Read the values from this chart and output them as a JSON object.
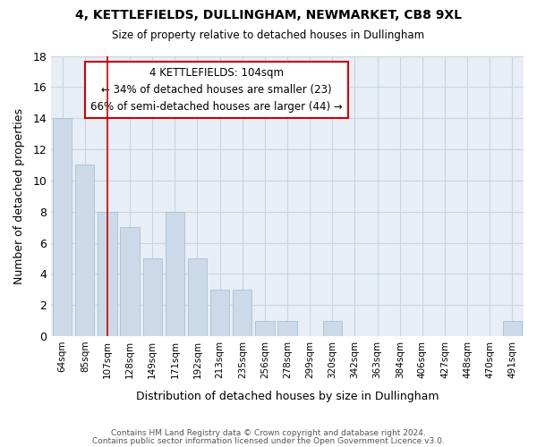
{
  "title": "4, KETTLEFIELDS, DULLINGHAM, NEWMARKET, CB8 9XL",
  "subtitle": "Size of property relative to detached houses in Dullingham",
  "xlabel": "Distribution of detached houses by size in Dullingham",
  "ylabel": "Number of detached properties",
  "bar_labels": [
    "64sqm",
    "85sqm",
    "107sqm",
    "128sqm",
    "149sqm",
    "171sqm",
    "192sqm",
    "213sqm",
    "235sqm",
    "256sqm",
    "278sqm",
    "299sqm",
    "320sqm",
    "342sqm",
    "363sqm",
    "384sqm",
    "406sqm",
    "427sqm",
    "448sqm",
    "470sqm",
    "491sqm"
  ],
  "bar_values": [
    14,
    11,
    8,
    7,
    5,
    8,
    5,
    3,
    3,
    1,
    1,
    0,
    1,
    0,
    0,
    0,
    0,
    0,
    0,
    0,
    1
  ],
  "bar_color": "#ccd9e8",
  "bar_edgecolor": "#a8c0d8",
  "ylim": [
    0,
    18
  ],
  "yticks": [
    0,
    2,
    4,
    6,
    8,
    10,
    12,
    14,
    16,
    18
  ],
  "grid_color": "#c8d4e0",
  "background_color": "#e8eef6",
  "vline_x": 2.0,
  "vline_color": "#cc0000",
  "annotation_text": "4 KETTLEFIELDS: 104sqm\n← 34% of detached houses are smaller (23)\n66% of semi-detached houses are larger (44) →",
  "annotation_box_color": "#cc0000",
  "footer_line1": "Contains HM Land Registry data © Crown copyright and database right 2024.",
  "footer_line2": "Contains public sector information licensed under the Open Government Licence v3.0."
}
